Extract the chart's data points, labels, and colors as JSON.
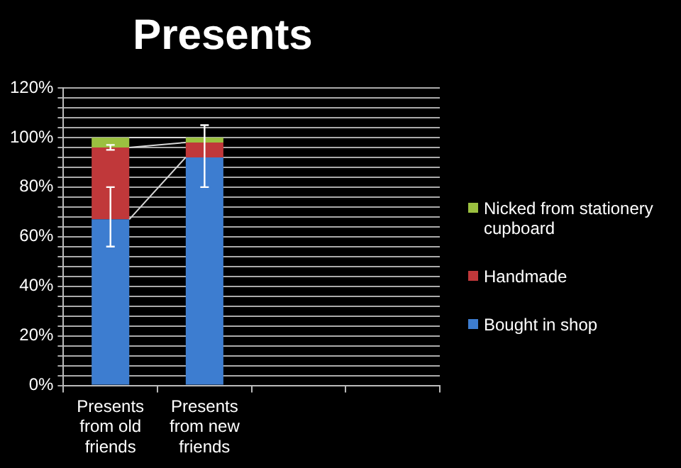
{
  "chart_data": {
    "type": "bar",
    "title": "Presents",
    "stacked": true,
    "categories": [
      "Presents from old friends",
      "Presents from new friends",
      null,
      null
    ],
    "series": [
      {
        "name": "Bought in shop",
        "color": "#3d7dd0",
        "values": [
          67,
          92,
          null,
          null
        ],
        "errors": [
          [
            56,
            80
          ],
          [
            80,
            105
          ],
          null,
          null
        ]
      },
      {
        "name": "Handmade",
        "color": "#c0383a",
        "values": [
          29,
          6,
          null,
          null
        ],
        "errors": [
          [
            95,
            97
          ],
          null,
          null,
          null
        ]
      },
      {
        "name": "Nicked from stationery cupboard",
        "color": "#9bc040",
        "values": [
          4,
          2,
          null,
          null
        ]
      }
    ],
    "ylim": [
      0,
      120
    ],
    "yticks": [
      {
        "value": 0,
        "label": "0%"
      },
      {
        "value": 4,
        "label": null
      },
      {
        "value": 8,
        "label": null
      },
      {
        "value": 12,
        "label": null
      },
      {
        "value": 16,
        "label": null
      },
      {
        "value": 20,
        "label": "20%"
      },
      {
        "value": 24,
        "label": null
      },
      {
        "value": 28,
        "label": null
      },
      {
        "value": 32,
        "label": null
      },
      {
        "value": 36,
        "label": null
      },
      {
        "value": 40,
        "label": "40%"
      },
      {
        "value": 44,
        "label": null
      },
      {
        "value": 48,
        "label": null
      },
      {
        "value": 52,
        "label": null
      },
      {
        "value": 56,
        "label": null
      },
      {
        "value": 60,
        "label": "60%"
      },
      {
        "value": 64,
        "label": null
      },
      {
        "value": 68,
        "label": null
      },
      {
        "value": 72,
        "label": null
      },
      {
        "value": 76,
        "label": null
      },
      {
        "value": 80,
        "label": "80%"
      },
      {
        "value": 84,
        "label": null
      },
      {
        "value": 88,
        "label": null
      },
      {
        "value": 92,
        "label": null
      },
      {
        "value": 96,
        "label": null
      },
      {
        "value": 100,
        "label": "100%"
      },
      {
        "value": 104,
        "label": null
      },
      {
        "value": 108,
        "label": null
      },
      {
        "value": 112,
        "label": null
      },
      {
        "value": 116,
        "label": null
      },
      {
        "value": 120,
        "label": "120%"
      }
    ],
    "grid": "y",
    "legend": "right"
  }
}
